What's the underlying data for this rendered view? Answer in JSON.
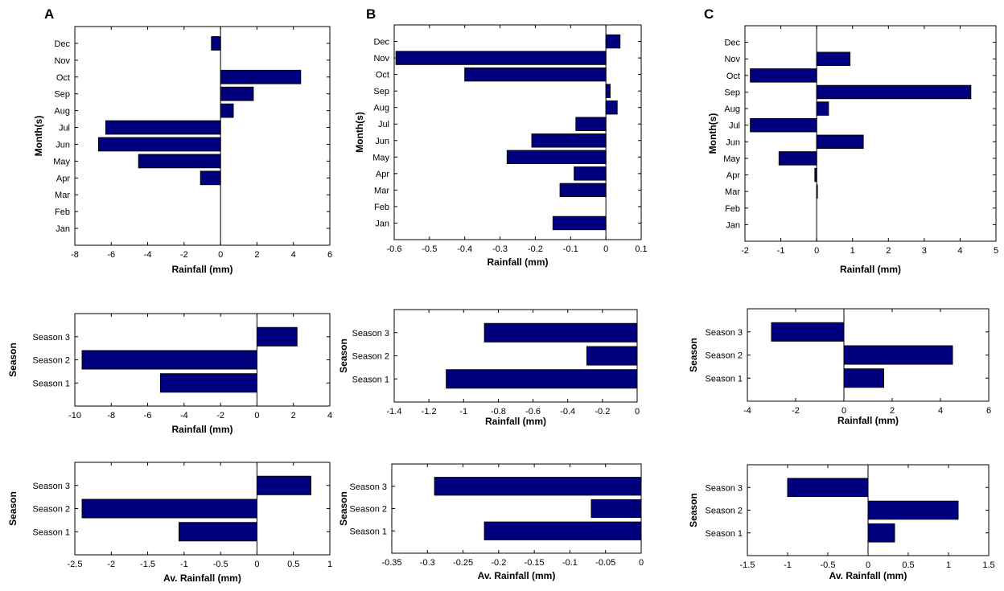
{
  "panel_labels": [
    "A",
    "B",
    "C"
  ],
  "colors": {
    "bar": "#00007f",
    "stroke": "#000000"
  },
  "chart_data": [
    {
      "id": "A-monthly",
      "type": "bar",
      "orientation": "horizontal",
      "categories": [
        "Jan",
        "Feb",
        "Mar",
        "Apr",
        "May",
        "Jun",
        "Jul",
        "Aug",
        "Sep",
        "Oct",
        "Nov",
        "Dec"
      ],
      "values": [
        0,
        0,
        0,
        -1.1,
        -4.5,
        -6.7,
        -6.3,
        0.7,
        1.8,
        4.4,
        0,
        -0.5
      ],
      "xlabel": "Rainfall (mm)",
      "ylabel": "Month(s)",
      "xlim": [
        -8,
        6
      ],
      "xticks": [
        -8,
        -6,
        -4,
        -2,
        0,
        2,
        4,
        6
      ],
      "xticklabels": [
        "-8",
        "-6",
        "-4",
        "-2",
        "0",
        "2",
        "4",
        "6"
      ]
    },
    {
      "id": "A-season",
      "type": "bar",
      "orientation": "horizontal",
      "categories": [
        "Season 1",
        "Season 2",
        "Season 3"
      ],
      "values": [
        -5.3,
        -9.6,
        2.2
      ],
      "xlabel": "Rainfall (mm)",
      "ylabel": "Season",
      "xlim": [
        -10,
        4
      ],
      "xticks": [
        -10,
        -8,
        -6,
        -4,
        -2,
        0,
        2,
        4
      ],
      "xticklabels": [
        "-10",
        "-8",
        "-6",
        "-4",
        "-2",
        "0",
        "2",
        "4"
      ]
    },
    {
      "id": "A-avseason",
      "type": "bar",
      "orientation": "horizontal",
      "categories": [
        "Season 1",
        "Season 2",
        "Season 3"
      ],
      "values": [
        -1.07,
        -2.4,
        0.74
      ],
      "xlabel": "Av. Rainfall (mm)",
      "ylabel": "Season",
      "xlim": [
        -2.5,
        1
      ],
      "xticks": [
        -2.5,
        -2,
        -1.5,
        -1,
        -0.5,
        0,
        0.5,
        1
      ],
      "xticklabels": [
        "-2.5",
        "-2",
        "-1.5",
        "-1",
        "-0.5",
        "0",
        "0.5",
        "1"
      ]
    },
    {
      "id": "B-monthly",
      "type": "bar",
      "orientation": "horizontal",
      "categories": [
        "Jan",
        "Feb",
        "Mar",
        "Apr",
        "May",
        "Jun",
        "Jul",
        "Aug",
        "Sep",
        "Oct",
        "Nov",
        "Dec"
      ],
      "values": [
        -0.15,
        0,
        -0.13,
        -0.09,
        -0.28,
        -0.21,
        -0.085,
        0.032,
        0.012,
        -0.4,
        -0.595,
        0.04
      ],
      "xlabel": "Rainfall (mm)",
      "ylabel": "Month(s)",
      "xlim": [
        -0.6,
        0.1
      ],
      "xticks": [
        -0.6,
        -0.5,
        -0.4,
        -0.3,
        -0.2,
        -0.1,
        0,
        0.1
      ],
      "xticklabels": [
        "-0.6",
        "-0.5",
        "-0.4",
        "-0.3",
        "-0.2",
        "-0.1",
        "0",
        "0.1"
      ]
    },
    {
      "id": "B-season",
      "type": "bar",
      "orientation": "horizontal",
      "categories": [
        "Season 1",
        "Season 2",
        "Season 3"
      ],
      "values": [
        -1.1,
        -0.29,
        -0.88
      ],
      "xlabel": "Rainfall (mm)",
      "ylabel": "Season",
      "xlim": [
        -1.4,
        0
      ],
      "xticks": [
        -1.4,
        -1.2,
        -1,
        -0.8,
        -0.6,
        -0.4,
        -0.2,
        0
      ],
      "xticklabels": [
        "-1.4",
        "-1.2",
        "-1",
        "-0.8",
        "-0.6",
        "-0.4",
        "-0.2",
        "0"
      ]
    },
    {
      "id": "B-avseason",
      "type": "bar",
      "orientation": "horizontal",
      "categories": [
        "Season 1",
        "Season 2",
        "Season 3"
      ],
      "values": [
        -0.22,
        -0.07,
        -0.29
      ],
      "xlabel": "Av. Rainfall (mm)",
      "ylabel": "Season",
      "xlim": [
        -0.35,
        0
      ],
      "xticks": [
        -0.35,
        -0.3,
        -0.25,
        -0.2,
        -0.15,
        -0.1,
        -0.05,
        0
      ],
      "xticklabels": [
        "-0.35",
        "-0.3",
        "-0.25",
        "-0.2",
        "-0.15",
        "-0.1",
        "-0.05",
        "0"
      ]
    },
    {
      "id": "C-monthly",
      "type": "bar",
      "orientation": "horizontal",
      "categories": [
        "Jan",
        "Feb",
        "Mar",
        "Apr",
        "May",
        "Jun",
        "Jul",
        "Aug",
        "Sep",
        "Oct",
        "Nov",
        "Dec"
      ],
      "values": [
        0,
        0,
        0.02,
        -0.05,
        -1.05,
        1.3,
        -1.85,
        0.33,
        4.3,
        -1.85,
        0.93,
        0
      ],
      "xlabel": "Rainfall (mm)",
      "ylabel": "Month(s)",
      "xlim": [
        -2,
        5
      ],
      "xticks": [
        -2,
        -1,
        0,
        1,
        2,
        3,
        4,
        5
      ],
      "xticklabels": [
        "-2",
        "-1",
        "0",
        "1",
        "2",
        "3",
        "4",
        "5"
      ]
    },
    {
      "id": "C-season",
      "type": "bar",
      "orientation": "horizontal",
      "categories": [
        "Season 1",
        "Season 2",
        "Season 3"
      ],
      "values": [
        1.65,
        4.5,
        -3
      ],
      "xlabel": "Rainfall (mm)",
      "ylabel": "Season",
      "xlim": [
        -4,
        6
      ],
      "xticks": [
        -4,
        -2,
        0,
        2,
        4,
        6
      ],
      "xticklabels": [
        "-4",
        "-2",
        "0",
        "2",
        "4",
        "6"
      ]
    },
    {
      "id": "C-avseason",
      "type": "bar",
      "orientation": "horizontal",
      "categories": [
        "Season 1",
        "Season 2",
        "Season 3"
      ],
      "values": [
        0.33,
        1.12,
        -1
      ],
      "xlabel": "Av. Rainfall (mm)",
      "ylabel": "Season",
      "xlim": [
        -1.5,
        1.5
      ],
      "xticks": [
        -1.5,
        -1,
        -0.5,
        0,
        0.5,
        1,
        1.5
      ],
      "xticklabels": [
        "-1.5",
        "-1",
        "-0.5",
        "0",
        "0.5",
        "1",
        "1.5"
      ]
    }
  ]
}
